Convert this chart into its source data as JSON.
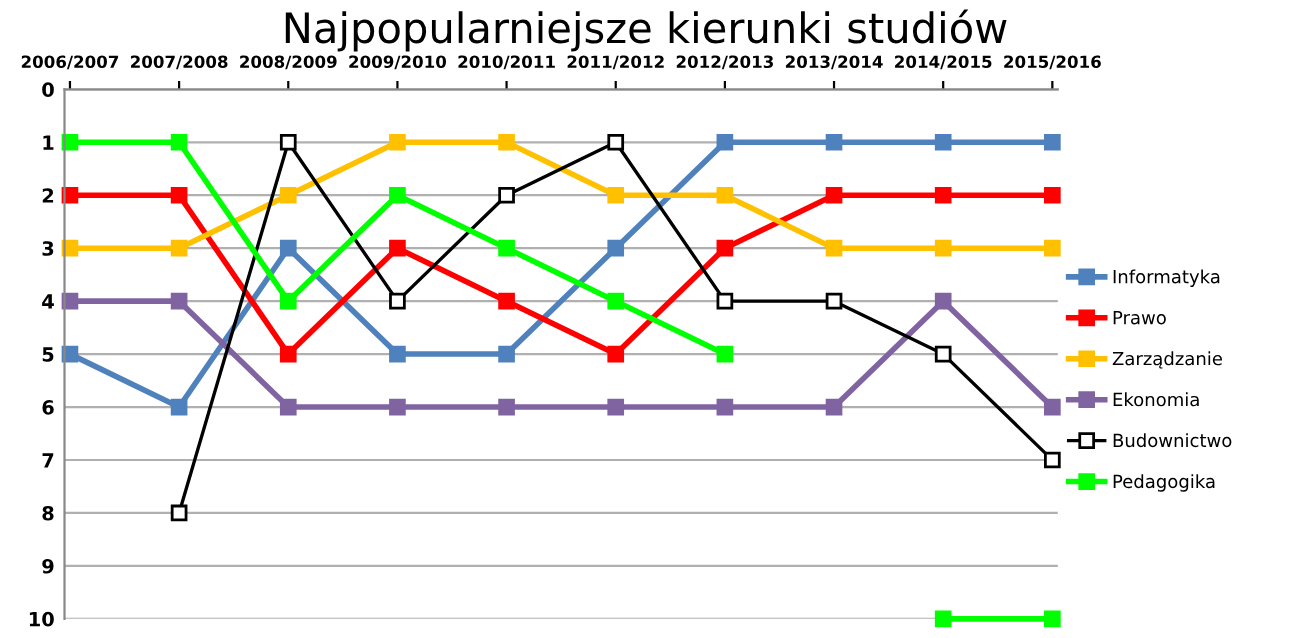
{
  "chart_data": {
    "type": "line",
    "title": "Najpopularniejsze kierunki studiów",
    "categories": [
      "2006/2007",
      "2007/2008",
      "2008/2009",
      "2009/2010",
      "2010/2011",
      "2011/2012",
      "2012/2013",
      "2013/2014",
      "2014/2015",
      "2015/2016"
    ],
    "series": [
      {
        "name": "Informatyka",
        "color": "#4f81bd",
        "values": [
          5,
          6,
          3,
          5,
          5,
          3,
          1,
          1,
          1,
          1
        ]
      },
      {
        "name": "Prawo",
        "color": "#ff0000",
        "values": [
          2,
          2,
          5,
          3,
          4,
          5,
          3,
          2,
          2,
          2
        ]
      },
      {
        "name": "Zarządzanie",
        "color": "#ffc000",
        "values": [
          3,
          3,
          2,
          1,
          1,
          2,
          2,
          3,
          3,
          3
        ]
      },
      {
        "name": "Ekonomia",
        "color": "#8064a2",
        "values": [
          4,
          4,
          6,
          6,
          6,
          6,
          6,
          6,
          4,
          6
        ]
      },
      {
        "name": "Budownictwo",
        "color": "#000000",
        "values": [
          null,
          8,
          1,
          4,
          2,
          1,
          4,
          4,
          5,
          7
        ]
      },
      {
        "name": "Pedagogika",
        "color": "#00ff00",
        "values": [
          1,
          1,
          4,
          2,
          3,
          4,
          5,
          null,
          10,
          10
        ]
      }
    ],
    "ylim": [
      10,
      0
    ],
    "yticks": [
      0,
      1,
      2,
      3,
      4,
      5,
      6,
      7,
      8,
      9,
      10
    ],
    "grid": "y",
    "legend": "right",
    "marker": "square",
    "line_style": "solid"
  }
}
